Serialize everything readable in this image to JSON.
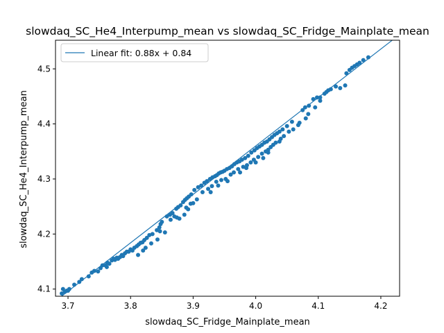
{
  "chart_data": {
    "type": "scatter",
    "title": "slowdaq_SC_He4_Interpump_mean vs slowdaq_SC_Fridge_Mainplate_mean",
    "xlabel": "slowdaq_SC_Fridge_Mainplate_mean",
    "ylabel": "slowdaq_SC_He4_Interpump_mean",
    "xlim": [
      3.68,
      4.23
    ],
    "ylim": [
      4.087,
      4.552
    ],
    "x_ticks": [
      3.7,
      3.8,
      3.9,
      4.0,
      4.1,
      4.2
    ],
    "x_tick_labels": [
      "3.7",
      "3.8",
      "3.9",
      "4.0",
      "4.1",
      "4.2"
    ],
    "y_ticks": [
      4.1,
      4.2,
      4.3,
      4.4,
      4.5
    ],
    "y_tick_labels": [
      "4.1",
      "4.2",
      "4.3",
      "4.4",
      "4.5"
    ],
    "grid": false,
    "legend_placement": "top-left",
    "point_color": "#1f77b4",
    "fit_color": "#1f77b4",
    "fit": {
      "slope": 0.88,
      "intercept": 0.84,
      "label": "Linear fit: 0.88x + 0.84"
    },
    "points": [
      [
        3.69,
        4.092
      ],
      [
        3.692,
        4.1
      ],
      [
        3.695,
        4.095
      ],
      [
        3.698,
        4.097
      ],
      [
        3.702,
        4.1
      ],
      [
        3.71,
        4.108
      ],
      [
        3.718,
        4.113
      ],
      [
        3.722,
        4.118
      ],
      [
        3.733,
        4.123
      ],
      [
        3.738,
        4.13
      ],
      [
        3.742,
        4.133
      ],
      [
        3.748,
        4.132
      ],
      [
        3.752,
        4.138
      ],
      [
        3.755,
        4.143
      ],
      [
        3.76,
        4.143
      ],
      [
        3.763,
        4.148
      ],
      [
        3.766,
        4.146
      ],
      [
        3.77,
        4.152
      ],
      [
        3.773,
        4.155
      ],
      [
        3.775,
        4.153
      ],
      [
        3.778,
        4.157
      ],
      [
        3.78,
        4.155
      ],
      [
        3.783,
        4.158
      ],
      [
        3.786,
        4.162
      ],
      [
        3.788,
        4.16
      ],
      [
        3.791,
        4.165
      ],
      [
        3.794,
        4.168
      ],
      [
        3.797,
        4.168
      ],
      [
        3.8,
        4.172
      ],
      [
        3.803,
        4.17
      ],
      [
        3.806,
        4.175
      ],
      [
        3.81,
        4.178
      ],
      [
        3.813,
        4.181
      ],
      [
        3.816,
        4.184
      ],
      [
        3.819,
        4.185
      ],
      [
        3.822,
        4.189
      ],
      [
        3.826,
        4.193
      ],
      [
        3.83,
        4.198
      ],
      [
        3.835,
        4.2
      ],
      [
        3.842,
        4.207
      ],
      [
        3.846,
        4.212
      ],
      [
        3.848,
        4.218
      ],
      [
        3.85,
        4.222
      ],
      [
        3.858,
        4.232
      ],
      [
        3.863,
        4.235
      ],
      [
        3.867,
        4.238
      ],
      [
        3.873,
        4.246
      ],
      [
        3.876,
        4.249
      ],
      [
        3.88,
        4.252
      ],
      [
        3.884,
        4.258
      ],
      [
        3.887,
        4.262
      ],
      [
        3.89,
        4.265
      ],
      [
        3.893,
        4.268
      ],
      [
        3.897,
        4.272
      ],
      [
        3.902,
        4.28
      ],
      [
        3.908,
        4.285
      ],
      [
        3.913,
        4.288
      ],
      [
        3.918,
        4.293
      ],
      [
        3.922,
        4.296
      ],
      [
        3.927,
        4.3
      ],
      [
        3.931,
        4.303
      ],
      [
        3.935,
        4.305
      ],
      [
        3.938,
        4.307
      ],
      [
        3.941,
        4.31
      ],
      [
        3.944,
        4.312
      ],
      [
        3.947,
        4.313
      ],
      [
        3.95,
        4.315
      ],
      [
        3.954,
        4.318
      ],
      [
        3.958,
        4.32
      ],
      [
        3.962,
        4.323
      ],
      [
        3.966,
        4.327
      ],
      [
        3.97,
        4.33
      ],
      [
        3.974,
        4.332
      ],
      [
        3.978,
        4.335
      ],
      [
        3.983,
        4.338
      ],
      [
        3.988,
        4.342
      ],
      [
        3.993,
        4.348
      ],
      [
        3.998,
        4.352
      ],
      [
        4.002,
        4.356
      ],
      [
        4.006,
        4.359
      ],
      [
        4.01,
        4.362
      ],
      [
        4.014,
        4.366
      ],
      [
        4.018,
        4.368
      ],
      [
        4.022,
        4.372
      ],
      [
        4.026,
        4.376
      ],
      [
        4.03,
        4.38
      ],
      [
        4.034,
        4.383
      ],
      [
        4.038,
        4.386
      ],
      [
        4.043,
        4.39
      ],
      [
        4.05,
        4.396
      ],
      [
        4.058,
        4.404
      ],
      [
        4.075,
        4.425
      ],
      [
        4.079,
        4.43
      ],
      [
        4.085,
        4.433
      ],
      [
        4.092,
        4.445
      ],
      [
        4.098,
        4.448
      ],
      [
        4.103,
        4.448
      ],
      [
        4.11,
        4.455
      ],
      [
        4.113,
        4.458
      ],
      [
        4.116,
        4.461
      ],
      [
        4.12,
        4.463
      ],
      [
        4.128,
        4.468
      ],
      [
        4.145,
        4.492
      ],
      [
        4.15,
        4.498
      ],
      [
        4.154,
        4.502
      ],
      [
        4.158,
        4.505
      ],
      [
        4.162,
        4.508
      ],
      [
        4.166,
        4.511
      ],
      [
        4.172,
        4.516
      ],
      [
        4.18,
        4.521
      ],
      [
        3.7,
        4.097
      ],
      [
        3.762,
        4.14
      ],
      [
        3.812,
        4.162
      ],
      [
        3.824,
        4.175
      ],
      [
        3.847,
        4.205
      ],
      [
        3.855,
        4.203
      ],
      [
        3.864,
        4.226
      ],
      [
        3.87,
        4.232
      ],
      [
        3.878,
        4.228
      ],
      [
        3.886,
        4.235
      ],
      [
        3.889,
        4.248
      ],
      [
        3.896,
        4.255
      ],
      [
        3.9,
        4.256
      ],
      [
        3.906,
        4.263
      ],
      [
        3.915,
        4.276
      ],
      [
        3.924,
        4.282
      ],
      [
        3.93,
        4.287
      ],
      [
        3.937,
        4.295
      ],
      [
        3.945,
        4.298
      ],
      [
        3.952,
        4.3
      ],
      [
        3.96,
        4.308
      ],
      [
        3.965,
        4.312
      ],
      [
        3.972,
        4.318
      ],
      [
        3.98,
        4.322
      ],
      [
        3.986,
        4.325
      ],
      [
        3.992,
        4.33
      ],
      [
        3.997,
        4.335
      ],
      [
        4.004,
        4.34
      ],
      [
        4.01,
        4.346
      ],
      [
        4.016,
        4.35
      ],
      [
        4.02,
        4.353
      ],
      [
        4.024,
        4.358
      ],
      [
        4.028,
        4.362
      ],
      [
        4.032,
        4.366
      ],
      [
        4.04,
        4.373
      ],
      [
        4.045,
        4.378
      ],
      [
        4.053,
        4.386
      ],
      [
        4.06,
        4.39
      ],
      [
        4.068,
        4.398
      ],
      [
        4.084,
        4.418
      ],
      [
        4.095,
        4.43
      ],
      [
        4.103,
        4.442
      ],
      [
        4.135,
        4.465
      ],
      [
        4.143,
        4.47
      ],
      [
        3.82,
        4.17
      ],
      [
        3.833,
        4.183
      ],
      [
        3.843,
        4.19
      ],
      [
        3.874,
        4.23
      ],
      [
        3.892,
        4.245
      ],
      [
        3.928,
        4.276
      ],
      [
        3.94,
        4.288
      ],
      [
        3.955,
        4.296
      ],
      [
        3.975,
        4.312
      ],
      [
        3.985,
        4.32
      ],
      [
        4.0,
        4.33
      ],
      [
        4.012,
        4.338
      ],
      [
        4.02,
        4.348
      ],
      [
        4.038,
        4.368
      ],
      [
        4.07,
        4.402
      ],
      [
        4.08,
        4.41
      ]
    ]
  }
}
